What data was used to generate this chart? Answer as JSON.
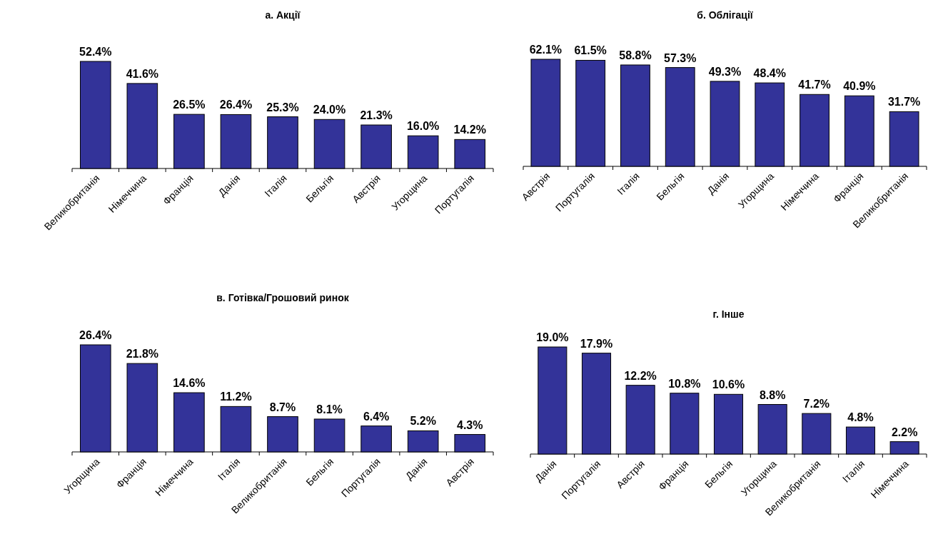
{
  "chart_data": [
    {
      "type": "bar",
      "title": "а. Акції",
      "categories": [
        "Великобританія",
        "Німеччина",
        "Франція",
        "Данія",
        "Італія",
        "Бельгія",
        "Австрія",
        "Угорщина",
        "Португалія"
      ],
      "values": [
        52.4,
        41.6,
        26.5,
        26.4,
        25.3,
        24.0,
        21.3,
        16.0,
        14.2
      ],
      "value_labels": [
        "52.4%",
        "41.6%",
        "26.5%",
        "26.4%",
        "25.3%",
        "24.0%",
        "21.3%",
        "16.0%",
        "14.2%"
      ],
      "color": "#333399"
    },
    {
      "type": "bar",
      "title": "б. Облігації",
      "categories": [
        "Австрія",
        "Португалія",
        "Італія",
        "Бельгія",
        "Данія",
        "Угорщина",
        "Німеччина",
        "Франція",
        "Великобританія"
      ],
      "values": [
        62.1,
        61.5,
        58.8,
        57.3,
        49.3,
        48.4,
        41.7,
        40.9,
        31.7
      ],
      "value_labels": [
        "62.1%",
        "61.5%",
        "58.8%",
        "57.3%",
        "49.3%",
        "48.4%",
        "41.7%",
        "40.9%",
        "31.7%"
      ],
      "color": "#333399"
    },
    {
      "type": "bar",
      "title": "в. Готівка/Грошовий ринок",
      "categories": [
        "Угорщина",
        "Франція",
        "Німеччина",
        "Італія",
        "Великобританія",
        "Бельгія",
        "Португалія",
        "Данія",
        "Австрія"
      ],
      "values": [
        26.4,
        21.8,
        14.6,
        11.2,
        8.7,
        8.1,
        6.4,
        5.2,
        4.3
      ],
      "value_labels": [
        "26.4%",
        "21.8%",
        "14.6%",
        "11.2%",
        "8.7%",
        "8.1%",
        "6.4%",
        "5.2%",
        "4.3%"
      ],
      "color": "#333399"
    },
    {
      "type": "bar",
      "title": "г. Інше",
      "categories": [
        "Данія",
        "Португалія",
        "Австрія",
        "Франція",
        "Бельгія",
        "Угорщина",
        "Великобританія",
        "Італія",
        "Німеччина"
      ],
      "values": [
        19.0,
        17.9,
        12.2,
        10.8,
        10.6,
        8.8,
        7.2,
        4.8,
        2.2
      ],
      "value_labels": [
        "19.0%",
        "17.9%",
        "12.2%",
        "10.8%",
        "10.6%",
        "8.8%",
        "7.2%",
        "4.8%",
        "2.2%"
      ],
      "color": "#333399"
    }
  ]
}
